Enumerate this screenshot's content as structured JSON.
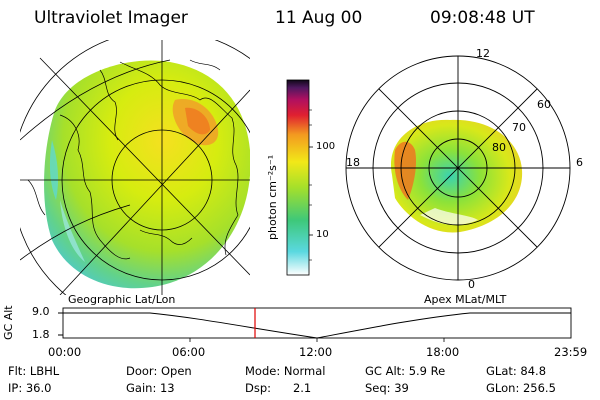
{
  "header": {
    "title": "Ultraviolet Imager",
    "date": "11 Aug 00",
    "time": "09:08:48 UT"
  },
  "colorbar": {
    "unit_label": "photon cm⁻²s⁻¹",
    "ticks": [
      "100",
      "10"
    ]
  },
  "geo_map": {
    "caption": "Geographic Lat/Lon"
  },
  "polar_plot": {
    "caption": "Apex MLat/MLT",
    "mlt_labels": [
      "12",
      "18",
      "6",
      "0"
    ],
    "mlat_labels": [
      "60",
      "70",
      "80"
    ]
  },
  "altitude_plot": {
    "axis_label": "GC Alt",
    "y_ticks": [
      "9.0",
      "1.8"
    ],
    "x_ticks": [
      "00:00",
      "06:00",
      "12:00",
      "18:00",
      "23:59"
    ],
    "cursor_color": "#e00000"
  },
  "info_rows": [
    [
      "Flt: LBHL",
      "Door: Open",
      "Mode: Normal",
      "GC Alt: 5.9 Re",
      "GLat: 84.8"
    ],
    [
      "IP: 36.0",
      "Gain: 13",
      "Dsp:      2.1",
      "Seq: 39",
      "GLon: 256.5"
    ]
  ]
}
